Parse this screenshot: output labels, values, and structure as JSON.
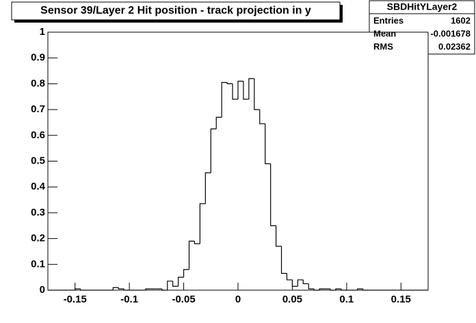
{
  "chart_data": {
    "type": "histogram",
    "title": "Sensor 39/Layer 2 Hit position - track projection in y",
    "stats": {
      "name": "SBDHitYLayer2",
      "labels": [
        "Entries",
        "Mean",
        "RMS"
      ],
      "values": [
        1602,
        -0.001678,
        0.02362
      ]
    },
    "bins": [
      -0.175,
      -0.17,
      -0.165,
      -0.16,
      -0.155,
      -0.15,
      -0.145,
      -0.14,
      -0.135,
      -0.13,
      -0.125,
      -0.12,
      -0.115,
      -0.11,
      -0.105,
      -0.1,
      -0.095,
      -0.09,
      -0.085,
      -0.08,
      -0.075,
      -0.07,
      -0.065,
      -0.06,
      -0.055,
      -0.05,
      -0.045,
      -0.04,
      -0.035,
      -0.03,
      -0.025,
      -0.02,
      -0.015,
      -0.01,
      -0.005,
      0,
      0.005,
      0.01,
      0.015,
      0.02,
      0.025,
      0.03,
      0.035,
      0.04,
      0.045,
      0.05,
      0.055,
      0.06,
      0.065,
      0.07,
      0.075,
      0.08,
      0.085,
      0.09,
      0.095,
      0.1,
      0.105,
      0.11,
      0.115,
      0.12,
      0.125,
      0.13,
      0.135,
      0.14,
      0.145,
      0.15,
      0.155,
      0.16,
      0.165,
      0.17,
      0.175
    ],
    "values": [
      0,
      0,
      0,
      0,
      0,
      0.005,
      0,
      0,
      0,
      0,
      0,
      0,
      0.01,
      0.005,
      0,
      0,
      0,
      0,
      0.005,
      0.005,
      0.005,
      0,
      0.035,
      0.015,
      0.05,
      0.08,
      0.19,
      0.18,
      0.335,
      0.455,
      0.625,
      0.67,
      0.805,
      0.8,
      0.74,
      0.81,
      0.74,
      0.82,
      0.7,
      0.645,
      0.49,
      0.25,
      0.17,
      0.065,
      0.04,
      0.015,
      0.04,
      0.025,
      0.005,
      0,
      0.005,
      0.005,
      0,
      0.005,
      0,
      0,
      0,
      0.005,
      0,
      0,
      0,
      0,
      0,
      0,
      0,
      0,
      0,
      0,
      0,
      0
    ],
    "color": "#000000",
    "xlim": [
      -0.175,
      0.175
    ],
    "xticks": [
      -0.15,
      -0.1,
      -0.05,
      0,
      0.05,
      0.1,
      0.15
    ],
    "ylim": [
      0,
      1
    ],
    "yticks": [
      0,
      0.1,
      0.2,
      0.3,
      0.4,
      0.5,
      0.6,
      0.7,
      0.8,
      0.9,
      1
    ]
  }
}
